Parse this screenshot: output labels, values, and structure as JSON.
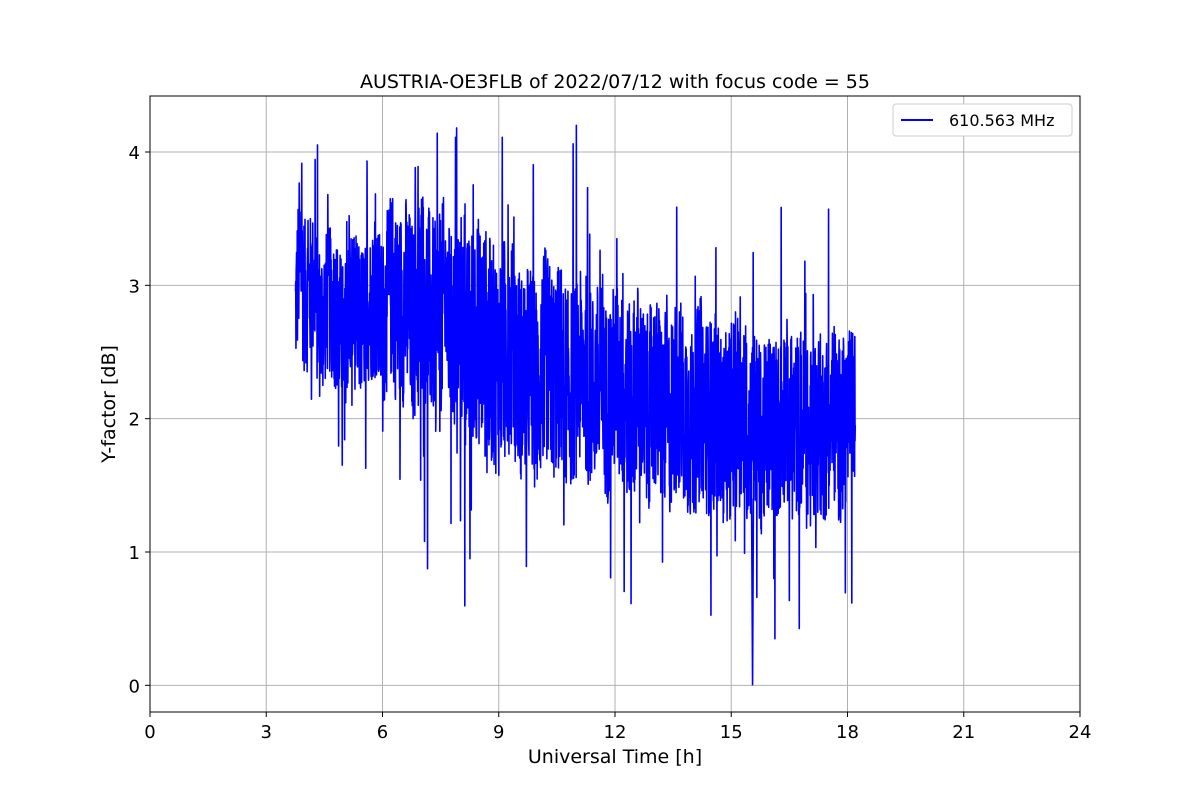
{
  "chart_data": {
    "type": "line",
    "title": "AUSTRIA-OE3FLB of 2022/07/12 with focus code = 55",
    "xlabel": "Universal Time [h]",
    "ylabel": "Y-factor [dB]",
    "xlim": [
      0,
      24
    ],
    "ylim": [
      -0.2,
      4.42
    ],
    "xticks": [
      0,
      3,
      6,
      9,
      12,
      15,
      18,
      21,
      24
    ],
    "yticks": [
      0,
      1,
      2,
      3,
      4
    ],
    "grid": true,
    "legend_position": "top-right",
    "series": [
      {
        "name": "610.563 MHz",
        "color": "#0000ff",
        "x": [
          3.75,
          3.85,
          4.0,
          4.2,
          4.4,
          4.6,
          4.8,
          5.0,
          5.2,
          5.4,
          5.6,
          5.8,
          6.0,
          6.2,
          6.4,
          6.6,
          6.8,
          7.0,
          7.2,
          7.4,
          7.6,
          7.8,
          8.0,
          8.2,
          8.4,
          8.6,
          8.8,
          9.0,
          9.2,
          9.4,
          9.6,
          9.8,
          10.0,
          10.2,
          10.4,
          10.6,
          10.8,
          11.0,
          11.2,
          11.4,
          11.6,
          11.8,
          12.0,
          12.2,
          12.4,
          12.6,
          12.8,
          13.0,
          13.2,
          13.4,
          13.6,
          13.8,
          14.0,
          14.2,
          14.4,
          14.6,
          14.8,
          15.0,
          15.2,
          15.4,
          15.6,
          15.8,
          16.0,
          16.2,
          16.4,
          16.6,
          16.8,
          17.0,
          17.2,
          17.4,
          17.6,
          17.8,
          18.0,
          18.2
        ],
        "y": [
          2.8,
          3.2,
          2.9,
          3.0,
          2.7,
          2.9,
          2.8,
          2.6,
          2.9,
          2.7,
          2.8,
          2.9,
          2.7,
          3.0,
          2.8,
          2.9,
          2.7,
          3.0,
          2.8,
          2.7,
          2.9,
          2.6,
          2.8,
          2.5,
          2.7,
          2.6,
          2.5,
          2.4,
          2.6,
          2.5,
          2.3,
          2.4,
          2.2,
          2.5,
          2.3,
          2.4,
          2.2,
          2.3,
          2.4,
          2.2,
          2.3,
          2.1,
          2.3,
          2.2,
          2.1,
          2.3,
          2.0,
          2.2,
          2.1,
          2.0,
          2.2,
          2.1,
          1.9,
          2.2,
          2.0,
          2.1,
          1.9,
          2.0,
          2.1,
          1.9,
          2.0,
          1.8,
          2.0,
          1.9,
          2.1,
          1.9,
          2.0,
          1.8,
          2.0,
          1.9,
          2.1,
          1.9,
          2.0,
          2.1
        ],
        "spread": [
          0.5,
          0.6,
          0.6,
          0.55,
          0.6,
          0.55,
          0.6,
          0.55,
          0.6,
          0.6,
          0.55,
          0.6,
          0.65,
          0.7,
          0.75,
          0.8,
          0.75,
          0.8,
          0.8,
          0.75,
          0.8,
          0.75,
          0.8,
          0.85,
          0.85,
          0.9,
          0.85,
          0.85,
          0.85,
          0.8,
          0.8,
          0.8,
          0.8,
          0.8,
          0.8,
          0.8,
          0.75,
          0.75,
          0.75,
          0.75,
          0.75,
          0.75,
          0.75,
          0.75,
          0.75,
          0.75,
          0.75,
          0.75,
          0.75,
          0.75,
          0.75,
          0.75,
          0.75,
          0.75,
          0.75,
          0.7,
          0.7,
          0.75,
          0.75,
          0.7,
          0.7,
          0.7,
          0.7,
          0.7,
          0.7,
          0.7,
          0.7,
          0.7,
          0.7,
          0.7,
          0.7,
          0.7,
          0.65,
          0.6
        ]
      }
    ]
  }
}
